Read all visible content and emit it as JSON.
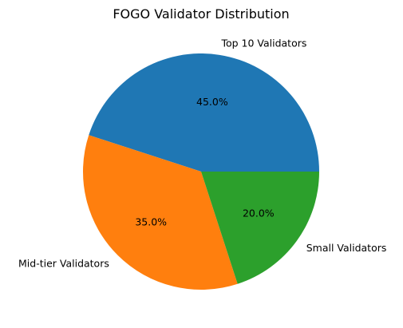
{
  "chart_data": {
    "type": "pie",
    "title": "FOGO Validator Distribution",
    "start_angle_deg": 0,
    "direction": "counterclockwise",
    "slices": [
      {
        "label": "Top 10 Validators",
        "value": 45.0,
        "pct_label": "45.0%",
        "color": "#1f77b4"
      },
      {
        "label": "Mid-tier Validators",
        "value": 35.0,
        "pct_label": "35.0%",
        "color": "#ff7f0e"
      },
      {
        "label": "Small Validators",
        "value": 20.0,
        "pct_label": "20.0%",
        "color": "#2ca02c"
      }
    ]
  }
}
